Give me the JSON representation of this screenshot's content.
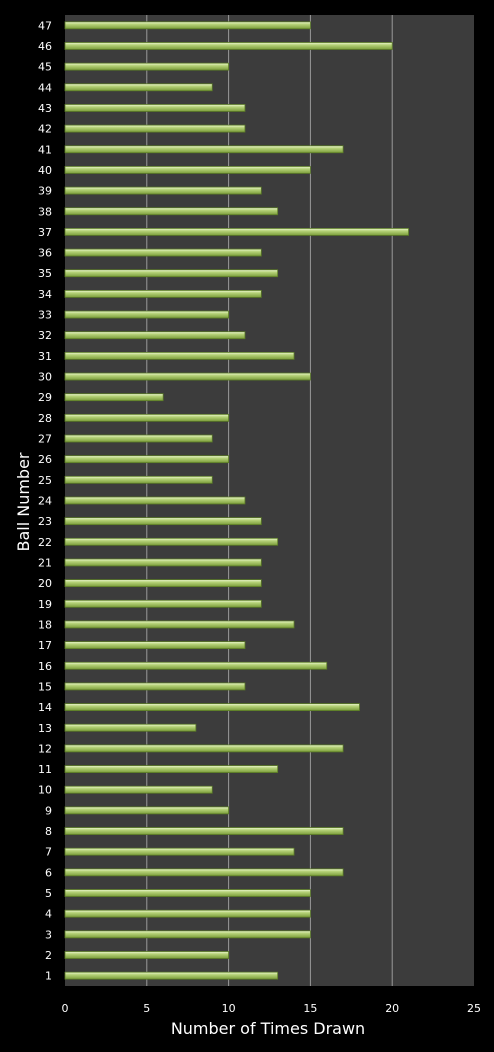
{
  "chart_data": {
    "type": "bar",
    "orientation": "horizontal",
    "title": "",
    "xlabel": "Number of Times Drawn",
    "ylabel": "Ball Number",
    "xlim": [
      0,
      25
    ],
    "xticks": [
      "0",
      "5",
      "10",
      "15",
      "20",
      "25"
    ],
    "grid": "vertical",
    "legend": "none",
    "colors": {
      "background": "#000000",
      "plot_area": "#3c3c3c",
      "gridline": "#9a9a9a",
      "bar_fill": "#9bbb59",
      "bar_highlight": "#d8ecae",
      "bar_edge": "#5a7a26",
      "text": "#ffffff"
    },
    "categories": [
      "1",
      "2",
      "3",
      "4",
      "5",
      "6",
      "7",
      "8",
      "9",
      "10",
      "11",
      "12",
      "13",
      "14",
      "15",
      "16",
      "17",
      "18",
      "19",
      "20",
      "21",
      "22",
      "23",
      "24",
      "25",
      "26",
      "27",
      "28",
      "29",
      "30",
      "31",
      "32",
      "33",
      "34",
      "35",
      "36",
      "37",
      "38",
      "39",
      "40",
      "41",
      "42",
      "43",
      "44",
      "45",
      "46",
      "47"
    ],
    "values": [
      13,
      10,
      15,
      15,
      15,
      17,
      14,
      17,
      10,
      9,
      13,
      17,
      8,
      18,
      11,
      16,
      11,
      14,
      12,
      12,
      12,
      13,
      12,
      11,
      9,
      10,
      9,
      10,
      6,
      15,
      14,
      11,
      10,
      12,
      13,
      12,
      21,
      13,
      12,
      15,
      17,
      11,
      11,
      9,
      10,
      20,
      15
    ]
  }
}
